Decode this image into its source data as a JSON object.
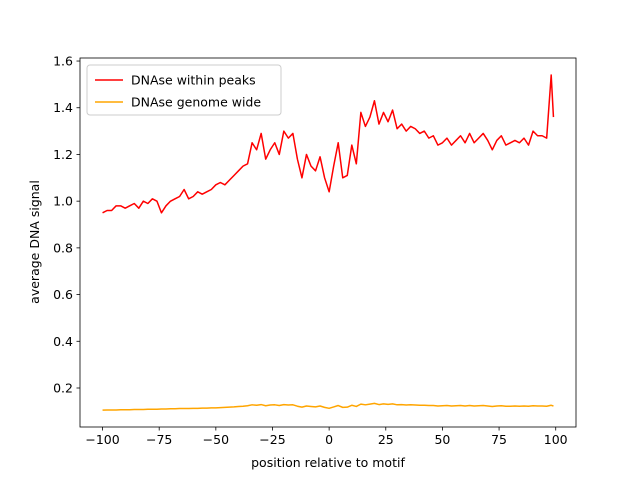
{
  "chart_data": {
    "type": "line",
    "xlabel": "position relative to motif",
    "ylabel": "average DNA signal",
    "x": [
      -100,
      -98,
      -96,
      -94,
      -92,
      -90,
      -88,
      -86,
      -84,
      -82,
      -80,
      -78,
      -76,
      -74,
      -72,
      -70,
      -68,
      -66,
      -64,
      -62,
      -60,
      -58,
      -56,
      -54,
      -52,
      -50,
      -48,
      -46,
      -44,
      -42,
      -40,
      -38,
      -36,
      -34,
      -32,
      -30,
      -28,
      -26,
      -24,
      -22,
      -20,
      -18,
      -16,
      -14,
      -12,
      -10,
      -8,
      -6,
      -4,
      -2,
      0,
      2,
      4,
      6,
      8,
      10,
      12,
      14,
      16,
      18,
      20,
      22,
      24,
      26,
      28,
      30,
      32,
      34,
      36,
      38,
      40,
      42,
      44,
      46,
      48,
      50,
      52,
      54,
      56,
      58,
      60,
      62,
      64,
      66,
      68,
      70,
      72,
      74,
      76,
      78,
      80,
      82,
      84,
      86,
      88,
      90,
      92,
      94,
      96,
      98,
      99
    ],
    "series": [
      {
        "name": "DNAse within peaks",
        "color": "#ff0000",
        "values": [
          0.95,
          0.96,
          0.96,
          0.98,
          0.98,
          0.97,
          0.98,
          0.99,
          0.97,
          1.0,
          0.99,
          1.01,
          1.0,
          0.95,
          0.98,
          1.0,
          1.01,
          1.02,
          1.05,
          1.01,
          1.02,
          1.04,
          1.03,
          1.04,
          1.05,
          1.07,
          1.08,
          1.07,
          1.09,
          1.11,
          1.13,
          1.15,
          1.16,
          1.25,
          1.22,
          1.29,
          1.18,
          1.22,
          1.25,
          1.2,
          1.3,
          1.27,
          1.29,
          1.18,
          1.1,
          1.2,
          1.15,
          1.13,
          1.19,
          1.1,
          1.04,
          1.15,
          1.25,
          1.1,
          1.11,
          1.24,
          1.16,
          1.38,
          1.32,
          1.36,
          1.43,
          1.33,
          1.38,
          1.34,
          1.39,
          1.31,
          1.33,
          1.3,
          1.32,
          1.31,
          1.29,
          1.3,
          1.27,
          1.28,
          1.24,
          1.25,
          1.27,
          1.24,
          1.26,
          1.28,
          1.25,
          1.29,
          1.25,
          1.27,
          1.29,
          1.26,
          1.22,
          1.26,
          1.28,
          1.24,
          1.25,
          1.26,
          1.25,
          1.27,
          1.24,
          1.3,
          1.28,
          1.28,
          1.27,
          1.54,
          1.36
        ]
      },
      {
        "name": "DNAse genome wide",
        "color": "#ffa500",
        "values": [
          0.105,
          0.106,
          0.106,
          0.106,
          0.107,
          0.107,
          0.107,
          0.108,
          0.108,
          0.108,
          0.109,
          0.109,
          0.109,
          0.11,
          0.11,
          0.111,
          0.111,
          0.112,
          0.112,
          0.112,
          0.113,
          0.113,
          0.114,
          0.114,
          0.115,
          0.115,
          0.116,
          0.117,
          0.118,
          0.119,
          0.121,
          0.122,
          0.124,
          0.128,
          0.126,
          0.129,
          0.124,
          0.127,
          0.128,
          0.125,
          0.129,
          0.127,
          0.128,
          0.122,
          0.118,
          0.123,
          0.121,
          0.119,
          0.123,
          0.117,
          0.113,
          0.119,
          0.125,
          0.117,
          0.118,
          0.126,
          0.121,
          0.131,
          0.128,
          0.131,
          0.134,
          0.129,
          0.132,
          0.13,
          0.132,
          0.128,
          0.129,
          0.127,
          0.128,
          0.127,
          0.126,
          0.126,
          0.125,
          0.125,
          0.123,
          0.124,
          0.125,
          0.123,
          0.124,
          0.125,
          0.123,
          0.125,
          0.123,
          0.124,
          0.125,
          0.123,
          0.121,
          0.123,
          0.124,
          0.122,
          0.122,
          0.123,
          0.122,
          0.123,
          0.122,
          0.124,
          0.123,
          0.123,
          0.122,
          0.126,
          0.123
        ]
      }
    ],
    "xlim": [
      -109.95,
      108.95
    ],
    "xticks": [
      {
        "value": -100,
        "label": "−100"
      },
      {
        "value": -75,
        "label": "−75"
      },
      {
        "value": -50,
        "label": "−50"
      },
      {
        "value": -25,
        "label": "−25"
      },
      0,
      25,
      50,
      75,
      100
    ],
    "ylim": [
      0.033,
      1.613
    ],
    "yticks": [
      0.2,
      0.4,
      0.6,
      0.8,
      {
        "value": 1,
        "label": "1.0"
      },
      1.2,
      1.4,
      1.6
    ],
    "grid": false,
    "legend": "upper left"
  }
}
